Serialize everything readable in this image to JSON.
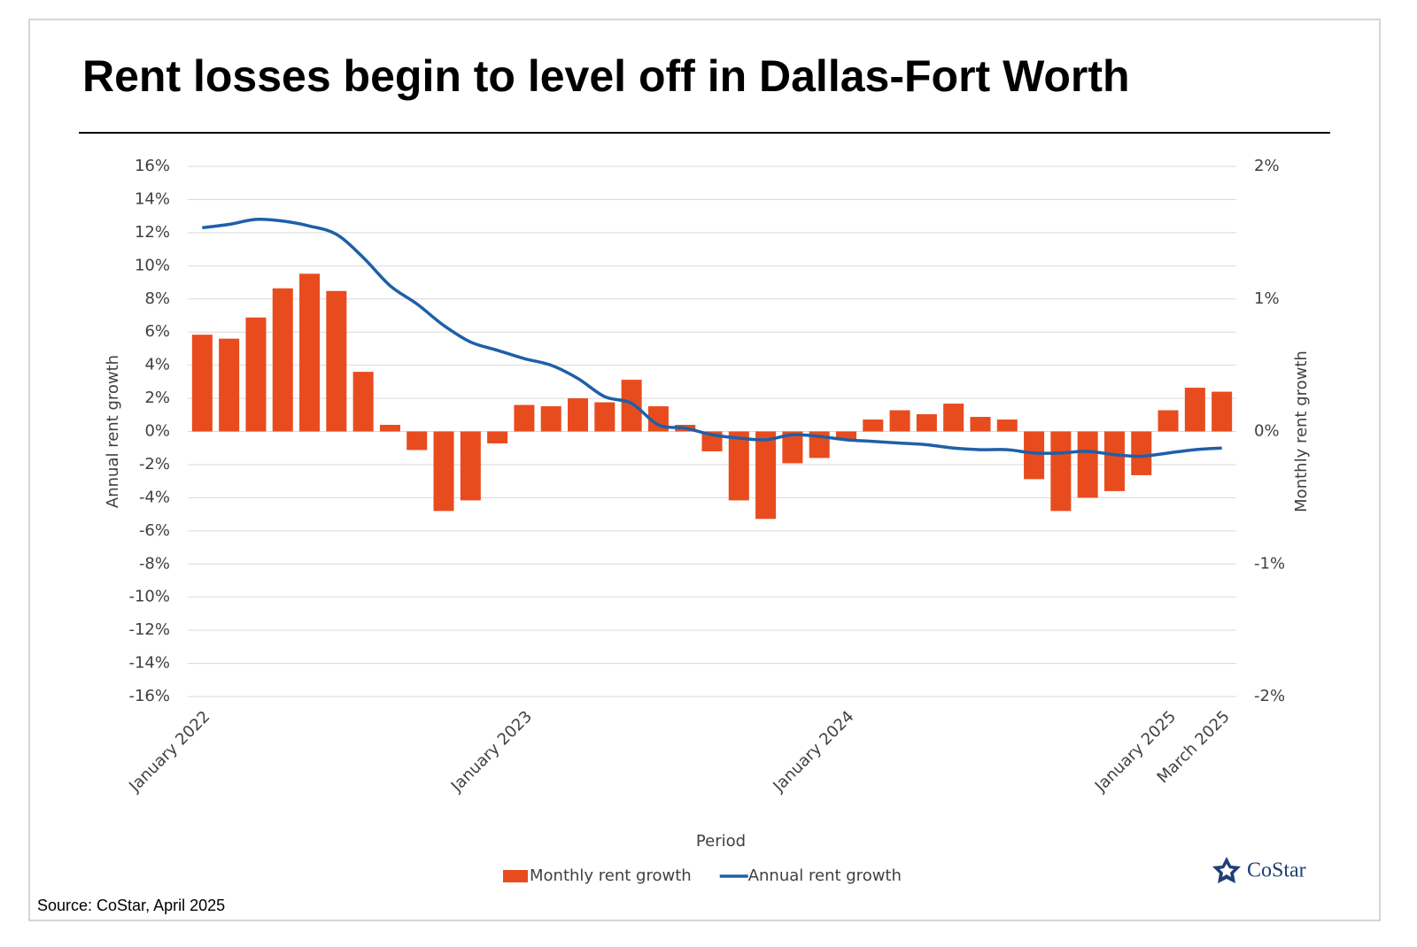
{
  "chart_data": {
    "type": "bar_line",
    "title": "Rent losses begin to level off in Dallas-Fort Worth",
    "source": "Source: CoStar, April 2025",
    "logo": "CoStar",
    "x_label": "Period",
    "y_label": "Annual rent growth",
    "y2_label": "Monthly rent growth",
    "categories": [
      "January 2022",
      null,
      null,
      null,
      null,
      null,
      null,
      null,
      null,
      null,
      null,
      null,
      "January 2023",
      null,
      null,
      null,
      null,
      null,
      null,
      null,
      null,
      null,
      null,
      null,
      "January 2024",
      null,
      null,
      null,
      null,
      null,
      null,
      null,
      null,
      null,
      null,
      null,
      "January 2025",
      null,
      "March 2025"
    ],
    "series": [
      {
        "name": "Monthly rent growth",
        "kind": "bar",
        "axis": "y2",
        "color": "#e84c1e",
        "values": [
          0.73,
          0.7,
          0.86,
          1.08,
          1.19,
          1.06,
          0.45,
          0.05,
          -0.14,
          -0.6,
          -0.52,
          -0.09,
          0.2,
          0.19,
          0.25,
          0.22,
          0.39,
          0.19,
          0.05,
          -0.15,
          -0.52,
          -0.66,
          -0.24,
          -0.2,
          -0.06,
          0.09,
          0.16,
          0.13,
          0.21,
          0.11,
          0.09,
          -0.36,
          -0.6,
          -0.5,
          -0.45,
          -0.33,
          0.16,
          0.33,
          0.3
        ]
      },
      {
        "name": "Annual rent growth",
        "kind": "line",
        "axis": "y",
        "color": "#1f5fa8",
        "values": [
          12.3,
          12.5,
          12.8,
          12.7,
          12.4,
          11.9,
          10.5,
          8.8,
          7.7,
          6.4,
          5.4,
          4.9,
          4.4,
          4.0,
          3.2,
          2.1,
          1.7,
          0.4,
          0.2,
          -0.2,
          -0.4,
          -0.5,
          -0.2,
          -0.3,
          -0.5,
          -0.6,
          -0.7,
          -0.8,
          -1.0,
          -1.1,
          -1.1,
          -1.3,
          -1.3,
          -1.2,
          -1.4,
          -1.5,
          -1.3,
          -1.1,
          -1.0
        ]
      }
    ],
    "ylim": [
      -16,
      16
    ],
    "yticks": [
      {
        "value": -16,
        "label": "-16%"
      },
      {
        "value": -14,
        "label": "-14%"
      },
      {
        "value": -12,
        "label": "-12%"
      },
      {
        "value": -10,
        "label": "-10%"
      },
      {
        "value": -8,
        "label": "-8%"
      },
      {
        "value": -6,
        "label": "-6%"
      },
      {
        "value": -4,
        "label": "-4%"
      },
      {
        "value": -2,
        "label": "-2%"
      },
      {
        "value": 0,
        "label": "0%"
      },
      {
        "value": 2,
        "label": "2%"
      },
      {
        "value": 4,
        "label": "4%"
      },
      {
        "value": 6,
        "label": "6%"
      },
      {
        "value": 8,
        "label": "8%"
      },
      {
        "value": 10,
        "label": "10%"
      },
      {
        "value": 12,
        "label": "12%"
      },
      {
        "value": 14,
        "label": "14%"
      },
      {
        "value": 16,
        "label": "16%"
      }
    ],
    "y2lim": [
      -2,
      2
    ],
    "y2ticks": [
      {
        "value": -2,
        "label": "-2%"
      },
      {
        "value": -1,
        "label": "-1%"
      },
      {
        "value": 0,
        "label": "0%"
      },
      {
        "value": 1,
        "label": "1%"
      },
      {
        "value": 2,
        "label": "2%"
      }
    ],
    "grid": true,
    "legend": "bottom"
  }
}
